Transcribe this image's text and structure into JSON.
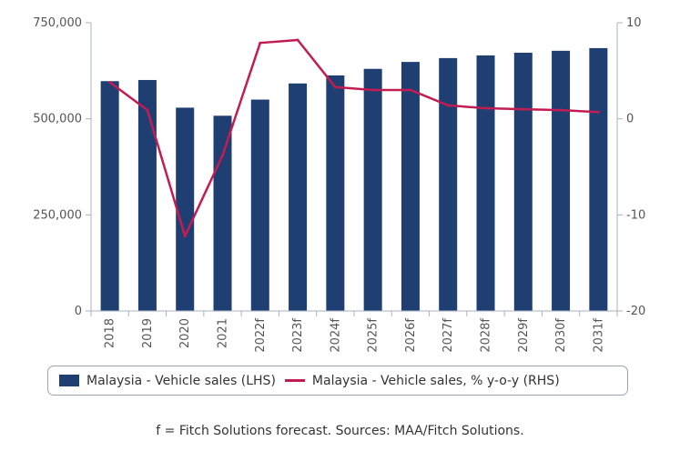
{
  "chart_data": {
    "type": "bar",
    "categories": [
      "2018",
      "2019",
      "2020",
      "2021",
      "2022f",
      "2023f",
      "2024f",
      "2025f",
      "2026f",
      "2027f",
      "2028f",
      "2029f",
      "2030f",
      "2031f"
    ],
    "series": [
      {
        "name": "Malaysia - Vehicle sales (LHS)",
        "type": "bar",
        "axis": "left",
        "color": "#1f3f73",
        "values": [
          598000,
          601000,
          529000,
          508000,
          550000,
          592000,
          613000,
          630000,
          648000,
          658000,
          665000,
          672000,
          677000,
          684000
        ]
      },
      {
        "name": "Malaysia - Vehicle sales, % y-o-y (RHS)",
        "type": "line",
        "axis": "right",
        "color": "#c21d52",
        "values": [
          3.8,
          0.9,
          -12.2,
          -3.8,
          7.9,
          8.2,
          3.3,
          3.0,
          3.0,
          1.4,
          1.1,
          1.0,
          0.9,
          0.7
        ]
      }
    ],
    "left_axis": {
      "ylim": [
        0,
        750000
      ],
      "ticks": [
        0,
        250000,
        500000,
        750000
      ],
      "tick_labels": [
        "0",
        "250,000",
        "500,000",
        "750,000"
      ]
    },
    "right_axis": {
      "ylim": [
        -20,
        10
      ],
      "ticks": [
        -20,
        -10,
        0,
        10
      ],
      "tick_labels": [
        "-20",
        "-10",
        "0",
        "10"
      ]
    },
    "grid": false,
    "legend_position": "bottom",
    "source_note": "f = Fitch Solutions forecast. Sources: MAA/Fitch Solutions."
  }
}
